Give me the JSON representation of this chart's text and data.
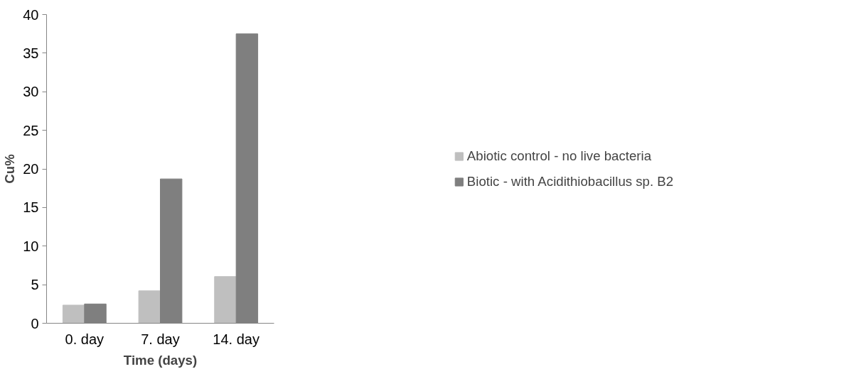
{
  "chart_data": {
    "type": "bar",
    "xlabel": "Time (days)",
    "ylabel": "Cu%",
    "categories": [
      "0. day",
      "7. day",
      "14. day"
    ],
    "series": [
      {
        "name": "Abiotic control - no live bacteria",
        "color": "#bfbfbf",
        "values": [
          2.35,
          4.2,
          6.05
        ]
      },
      {
        "name": "Biotic - with Acidithiobacillus sp. B2",
        "color": "#7f7f7f",
        "values": [
          2.5,
          18.7,
          37.5
        ]
      }
    ],
    "ylim": [
      0,
      40
    ],
    "yticks": [
      0,
      5,
      10,
      15,
      20,
      25,
      30,
      35,
      40
    ],
    "grid": false,
    "legend": "right"
  }
}
